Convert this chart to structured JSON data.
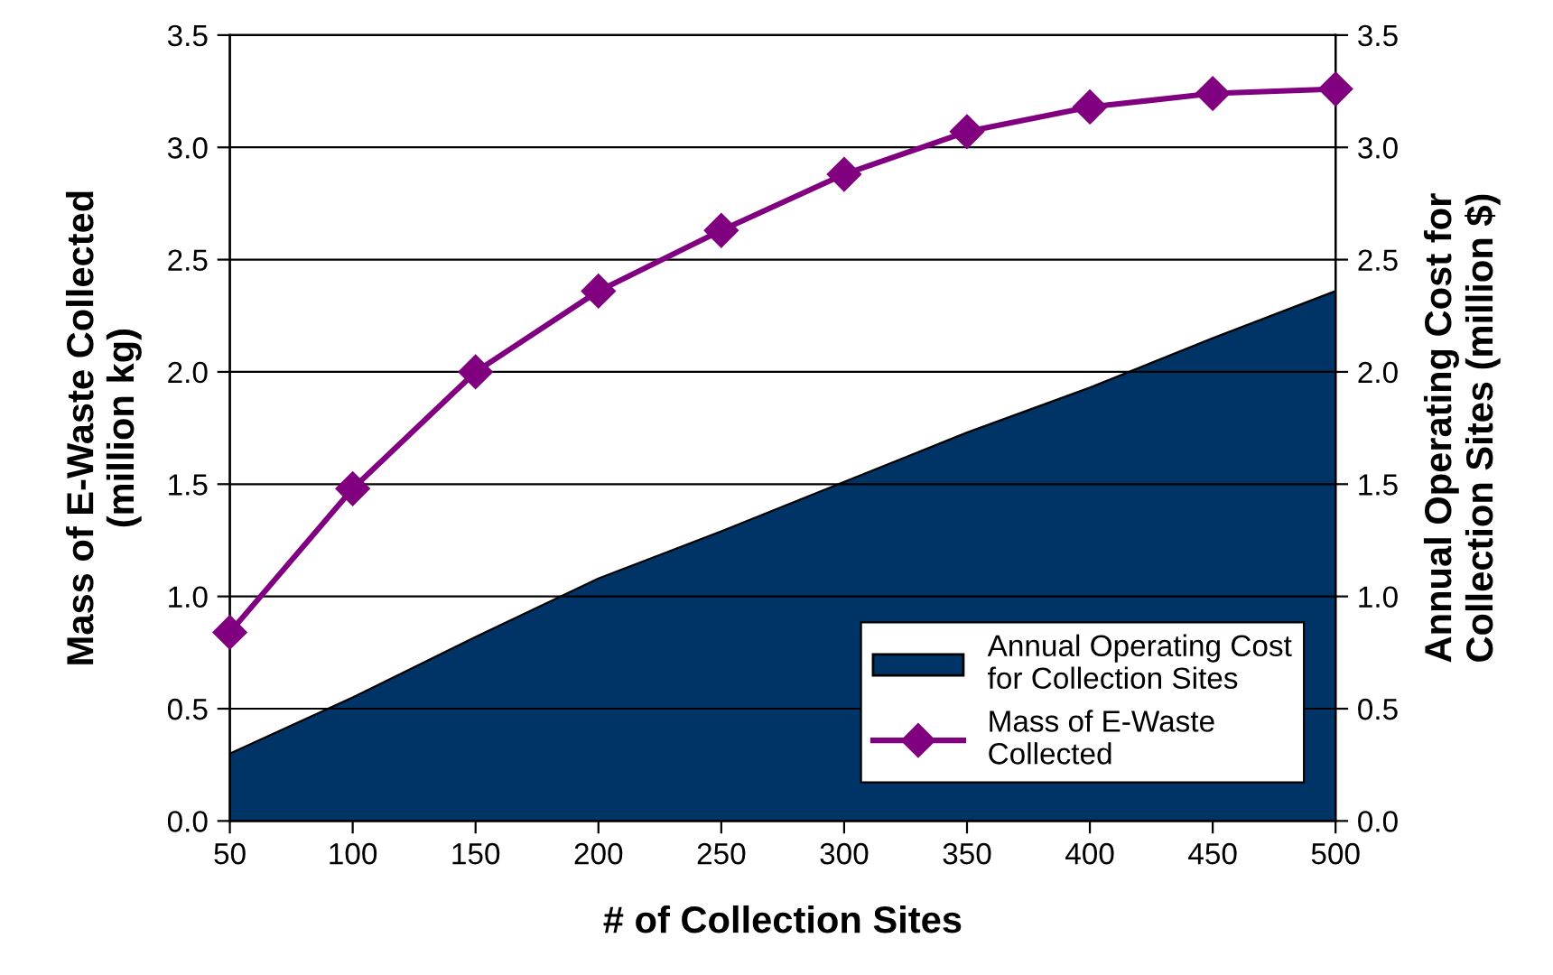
{
  "chart_data": {
    "type": "line",
    "xlabel": "# of Collection Sites",
    "ylabel": "Mass of E-Waste Collected\n(million kg)",
    "y2label": "Annual Operating Cost for\nCollection Sites (million $)",
    "x": [
      50,
      100,
      150,
      200,
      250,
      300,
      350,
      400,
      450,
      500
    ],
    "xlim": [
      50,
      500
    ],
    "xticks": [
      50,
      100,
      150,
      200,
      250,
      300,
      350,
      400,
      450,
      500
    ],
    "ylim": [
      0,
      3.5
    ],
    "yticks": [
      {
        "value": 0,
        "label": "0.0"
      },
      {
        "value": 0.5,
        "label": "0.5"
      },
      {
        "value": 1,
        "label": "1.0"
      },
      {
        "value": 1.5,
        "label": "1.5"
      },
      {
        "value": 2,
        "label": "2.0"
      },
      {
        "value": 2.5,
        "label": "2.5"
      },
      {
        "value": 3,
        "label": "3.0"
      },
      {
        "value": 3.5,
        "label": "3.5"
      }
    ],
    "y2lim": [
      0,
      3.5
    ],
    "y2ticks": [
      {
        "value": 0,
        "label": "0.0"
      },
      {
        "value": 0.5,
        "label": "0.5"
      },
      {
        "value": 1,
        "label": "1.0"
      },
      {
        "value": 1.5,
        "label": "1.5"
      },
      {
        "value": 2,
        "label": "2.0"
      },
      {
        "value": 2.5,
        "label": "2.5"
      },
      {
        "value": 3,
        "label": "3.0"
      },
      {
        "value": 3.5,
        "label": "3.5"
      }
    ],
    "grid": "y",
    "legend": "bottom right",
    "series": [
      {
        "name": "Annual Operating Cost\nfor Collection Sites",
        "type": "area",
        "axis": "y2",
        "color": "#003366",
        "values": [
          0.3,
          0.55,
          0.82,
          1.08,
          1.29,
          1.51,
          1.73,
          1.93,
          2.15,
          2.36
        ]
      },
      {
        "name": "Mass of E-Waste\nCollected",
        "axis": "y",
        "color": "#800080",
        "marker": "diamond",
        "values": [
          0.84,
          1.48,
          2.0,
          2.36,
          2.63,
          2.88,
          3.07,
          3.18,
          3.24,
          3.26
        ]
      }
    ]
  }
}
